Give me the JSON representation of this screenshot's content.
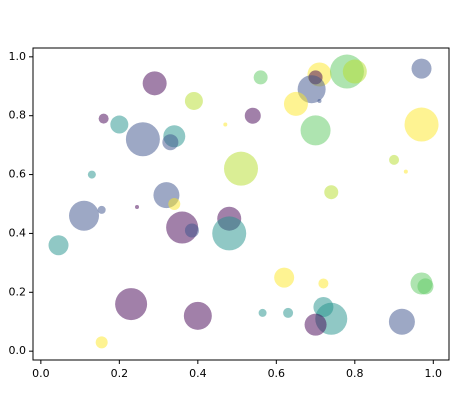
{
  "chart_data": {
    "type": "scatter",
    "x": [
      0.29,
      0.56,
      0.71,
      0.7,
      0.69,
      0.78,
      0.8,
      0.97,
      0.39,
      0.65,
      0.71,
      0.54,
      0.16,
      0.2,
      0.26,
      0.34,
      0.33,
      0.47,
      0.7,
      0.97,
      0.9,
      0.93,
      0.13,
      0.51,
      0.74,
      0.32,
      0.245,
      0.155,
      0.11,
      0.34,
      0.48,
      0.36,
      0.385,
      0.48,
      0.045,
      0.62,
      0.72,
      0.97,
      0.98,
      0.23,
      0.4,
      0.565,
      0.63,
      0.72,
      0.74,
      0.7,
      0.92,
      0.155
    ],
    "y": [
      0.91,
      0.93,
      0.94,
      0.93,
      0.89,
      0.95,
      0.95,
      0.96,
      0.85,
      0.84,
      0.85,
      0.8,
      0.79,
      0.77,
      0.72,
      0.73,
      0.71,
      0.77,
      0.75,
      0.77,
      0.65,
      0.61,
      0.6,
      0.62,
      0.54,
      0.53,
      0.49,
      0.48,
      0.46,
      0.5,
      0.45,
      0.42,
      0.41,
      0.4,
      0.36,
      0.25,
      0.23,
      0.23,
      0.22,
      0.16,
      0.12,
      0.13,
      0.13,
      0.15,
      0.11,
      0.09,
      0.1,
      0.03
    ],
    "sizes": [
      576,
      196,
      576,
      196,
      784,
      1156,
      576,
      400,
      324,
      576,
      16,
      256,
      100,
      324,
      1156,
      484,
      256,
      16,
      900,
      1156,
      100,
      16,
      64,
      1156,
      196,
      676,
      16,
      64,
      900,
      144,
      576,
      1024,
      196,
      1156,
      400,
      400,
      100,
      484,
      256,
      1024,
      784,
      64,
      100,
      400,
      1024,
      484,
      676,
      144
    ],
    "colors": [
      "#440154",
      "#5ec962",
      "#fde725",
      "#440154",
      "#3b528b",
      "#5ec962",
      "#b5de2b",
      "#3b528b",
      "#b5de2b",
      "#fde725",
      "#3b528b",
      "#440154",
      "#440154",
      "#21918c",
      "#3b528b",
      "#21918c",
      "#3b528b",
      "#fde725",
      "#5ec962",
      "#fde725",
      "#b5de2b",
      "#fde725",
      "#21918c",
      "#b5de2b",
      "#b5de2b",
      "#3b528b",
      "#440154",
      "#3b528b",
      "#3b528b",
      "#fde725",
      "#440154",
      "#440154",
      "#3b528b",
      "#21918c",
      "#21918c",
      "#fde725",
      "#fde725",
      "#5ec962",
      "#5ec962",
      "#440154",
      "#440154",
      "#21918c",
      "#21918c",
      "#21918c",
      "#21918c",
      "#440154",
      "#3b528b",
      "#fde725"
    ],
    "alpha": 0.5,
    "xlim": [
      -0.02,
      1.04
    ],
    "ylim": [
      -0.03,
      1.03
    ],
    "xticks": [
      {
        "value": 0,
        "label": "0.0"
      },
      {
        "value": 0.2,
        "label": "0.2"
      },
      {
        "value": 0.4,
        "label": "0.4"
      },
      {
        "value": 0.6,
        "label": "0.6"
      },
      {
        "value": 0.8,
        "label": "0.8"
      },
      {
        "value": 1,
        "label": "1.0"
      }
    ],
    "yticks": [
      {
        "value": 0,
        "label": "0.0"
      },
      {
        "value": 0.2,
        "label": "0.2"
      },
      {
        "value": 0.4,
        "label": "0.4"
      },
      {
        "value": 0.6,
        "label": "0.6"
      },
      {
        "value": 0.8,
        "label": "0.8"
      },
      {
        "value": 1,
        "label": "1.0"
      }
    ]
  }
}
